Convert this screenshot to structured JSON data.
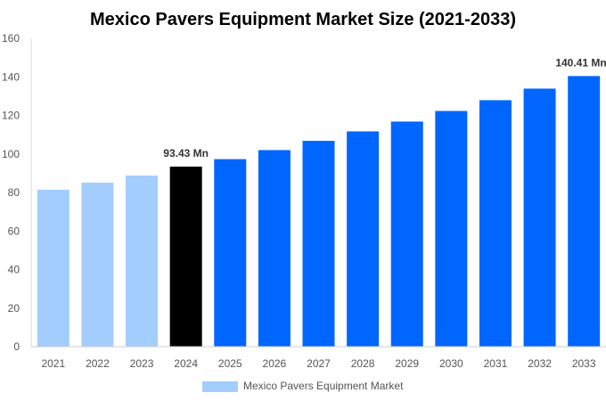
{
  "chart_data": {
    "type": "bar",
    "title": "Mexico Pavers Equipment Market Size (2021-2033)",
    "xlabel": "",
    "ylabel": "",
    "ylim": [
      0,
      160
    ],
    "yticks": [
      0,
      20,
      40,
      60,
      80,
      100,
      120,
      140,
      160
    ],
    "grid": false,
    "legend_position": "bottom",
    "categories": [
      "2021",
      "2022",
      "2023",
      "2024",
      "2025",
      "2026",
      "2027",
      "2028",
      "2029",
      "2030",
      "2031",
      "2032",
      "2033"
    ],
    "series": [
      {
        "name": "Mexico Pavers Equipment Market",
        "values": [
          81.4,
          85.1,
          88.8,
          93.43,
          97.3,
          102.0,
          106.8,
          111.7,
          116.8,
          122.3,
          127.9,
          133.9,
          140.41
        ]
      }
    ],
    "bar_colors": [
      "#a3cdff",
      "#a3cdff",
      "#a3cdff",
      "#000000",
      "#0066ff",
      "#0066ff",
      "#0066ff",
      "#0066ff",
      "#0066ff",
      "#0066ff",
      "#0066ff",
      "#0066ff",
      "#0066ff"
    ],
    "data_labels": [
      {
        "category": "2024",
        "text": "93.43 Mn"
      },
      {
        "category": "2033",
        "text": "140.41 Mn"
      }
    ],
    "legend_color": "#a3cdff"
  }
}
